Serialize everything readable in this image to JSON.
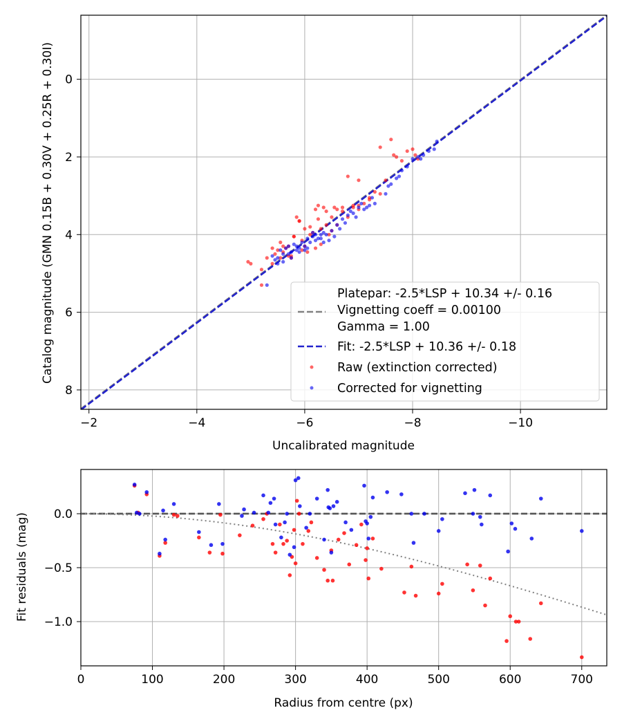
{
  "chart_data": [
    {
      "type": "scatter",
      "xlabel": "Uncalibrated magnitude",
      "ylabel": "Catalog magnitude (GMN 0.15B + 0.30V + 0.25R + 0.30I)",
      "xlim": [
        -1.85,
        -11.6
      ],
      "ylim": [
        8.5,
        -1.65
      ],
      "x_inverted": true,
      "y_inverted": true,
      "xticks": [
        -2,
        -4,
        -6,
        -8,
        -10
      ],
      "xtick_labels": [
        "−2",
        "−4",
        "−6",
        "−8",
        "−10"
      ],
      "yticks": [
        0,
        2,
        4,
        6,
        8
      ],
      "ytick_labels": [
        "0",
        "2",
        "4",
        "6",
        "8"
      ],
      "grid": true,
      "legend_position": "lower-right",
      "legend": {
        "platepar": "Platepar: -2.5*LSP + 10.34 +/- 0.16",
        "vignetting": "Vignetting coeff = 0.00100",
        "gamma": "Gamma = 1.00",
        "fit": "Fit: -2.5*LSP + 10.36 +/- 0.18",
        "raw": "Raw (extinction corrected)",
        "corrected": "Corrected for vignetting"
      },
      "lines": [
        {
          "name": "Platepar: -2.5*LSP + 10.34 +/- 0.16",
          "color": "#808080",
          "style": "dashed",
          "x": [
            -1.85,
            -11.6
          ],
          "y": [
            8.49,
            -1.65
          ]
        },
        {
          "name": "Fit: -2.5*LSP + 10.36 +/- 0.18",
          "color": "#2222cc",
          "style": "dashed",
          "x": [
            -1.85,
            -11.6
          ],
          "y": [
            8.51,
            -1.63
          ]
        }
      ],
      "series": [
        {
          "name": "Raw (extinction corrected)",
          "color": "#ff0000",
          "x": [
            -5.0,
            -4.95,
            -5.2,
            -5.3,
            -5.4,
            -5.45,
            -5.5,
            -5.55,
            -5.6,
            -5.65,
            -5.7,
            -5.75,
            -5.8,
            -5.85,
            -5.9,
            -5.95,
            -6.0,
            -6.05,
            -6.1,
            -6.15,
            -6.2,
            -6.25,
            -6.3,
            -6.35,
            -6.4,
            -6.45,
            -6.5,
            -6.55,
            -6.6,
            -6.7,
            -6.8,
            -6.9,
            -7.0,
            -7.1,
            -7.2,
            -7.3,
            -7.4,
            -7.6,
            -7.7,
            -7.8,
            -8.0,
            -8.1,
            -5.55,
            -5.7,
            -5.9,
            -6.0,
            -6.2,
            -6.3,
            -6.5,
            -6.7,
            -6.9,
            -7.0,
            -7.2,
            -7.5,
            -5.2,
            -5.4,
            -5.6,
            -5.8,
            -6.1,
            -6.4,
            -6.6,
            -6.8,
            -7.0,
            -7.4,
            -7.65,
            -7.9,
            -8.05,
            -5.75,
            -5.95,
            -6.25
          ],
          "y": [
            4.75,
            4.7,
            5.3,
            4.6,
            4.35,
            4.5,
            4.4,
            4.6,
            4.45,
            4.35,
            4.3,
            4.55,
            4.05,
            3.55,
            3.65,
            4.4,
            4.3,
            4.45,
            4.0,
            3.95,
            3.35,
            3.25,
            3.85,
            3.3,
            3.75,
            4.0,
            3.55,
            3.3,
            3.35,
            3.4,
            3.55,
            3.3,
            3.25,
            3.2,
            3.05,
            2.9,
            2.95,
            1.55,
            2.0,
            2.1,
            1.8,
            2.05,
            4.2,
            4.55,
            3.65,
            3.85,
            4.35,
            4.25,
            3.9,
            3.3,
            3.25,
            3.35,
            3.1,
            2.6,
            4.9,
            4.75,
            4.3,
            4.05,
            3.8,
            3.4,
            3.75,
            2.5,
            2.6,
            1.75,
            1.95,
            1.85,
            1.95,
            4.6,
            4.15,
            3.6
          ]
        },
        {
          "name": "Corrected for vignetting",
          "color": "#0000ee",
          "x": [
            -5.45,
            -5.5,
            -5.55,
            -5.6,
            -5.65,
            -5.7,
            -5.75,
            -5.8,
            -5.85,
            -5.9,
            -5.95,
            -6.0,
            -6.05,
            -6.1,
            -6.15,
            -6.2,
            -6.25,
            -6.3,
            -6.35,
            -6.4,
            -6.5,
            -6.6,
            -6.7,
            -6.8,
            -6.9,
            -7.0,
            -7.1,
            -7.2,
            -7.3,
            -7.5,
            -7.6,
            -7.7,
            -7.8,
            -7.9,
            -8.0,
            -8.1,
            -8.2,
            -8.3,
            -8.4,
            -8.45,
            -5.6,
            -5.75,
            -5.9,
            -6.05,
            -6.2,
            -6.35,
            -6.55,
            -6.75,
            -6.95,
            -7.15,
            -5.4,
            -5.5,
            -5.7,
            -5.85,
            -6.0,
            -6.15,
            -6.3,
            -6.45,
            -6.65,
            -6.85,
            -7.05,
            -7.25,
            -7.55,
            -7.75,
            -8.15,
            -5.3
          ],
          "y": [
            4.65,
            4.6,
            4.4,
            4.5,
            4.35,
            4.3,
            4.45,
            4.25,
            4.4,
            4.35,
            4.2,
            4.3,
            4.1,
            4.2,
            4.05,
            4.15,
            4.1,
            4.0,
            3.95,
            4.0,
            3.9,
            3.75,
            3.6,
            3.5,
            3.45,
            3.3,
            3.35,
            3.25,
            3.2,
            2.95,
            2.7,
            2.55,
            2.35,
            2.25,
            2.05,
            2.0,
            1.95,
            1.85,
            1.8,
            1.6,
            4.7,
            4.6,
            4.45,
            4.35,
            4.0,
            4.2,
            4.05,
            3.7,
            3.55,
            3.3,
            4.55,
            4.75,
            4.5,
            4.3,
            4.4,
            3.95,
            4.1,
            4.15,
            3.85,
            3.4,
            3.2,
            3.05,
            2.75,
            2.5,
            2.05,
            5.3
          ]
        }
      ]
    },
    {
      "type": "scatter",
      "xlabel": "Radius from centre (px)",
      "ylabel": "Fit residuals (mag)",
      "xlim": [
        0,
        735
      ],
      "ylim": [
        -1.41,
        0.41
      ],
      "xticks": [
        0,
        100,
        200,
        300,
        400,
        500,
        600,
        700
      ],
      "xtick_labels": [
        "0",
        "100",
        "200",
        "300",
        "400",
        "500",
        "600",
        "700"
      ],
      "yticks": [
        0.0,
        -0.5,
        -1.0
      ],
      "ytick_labels": [
        "0.0",
        "−0.5",
        "−1.0"
      ],
      "grid": true,
      "lines": [
        {
          "name": "zero",
          "color": "#555555",
          "style": "dashed",
          "x": [
            0,
            735
          ],
          "y": [
            0,
            0
          ]
        },
        {
          "name": "vignetting model",
          "color": "#808080",
          "style": "dotted",
          "func": "vignetting",
          "coeff": 0.001
        }
      ],
      "series": [
        {
          "name": "Raw (extinction corrected)",
          "color": "#ff0000",
          "x": [
            75,
            80,
            92,
            110,
            118,
            130,
            135,
            165,
            180,
            195,
            198,
            222,
            240,
            255,
            260,
            268,
            272,
            278,
            283,
            288,
            292,
            295,
            298,
            300,
            302,
            305,
            310,
            318,
            322,
            330,
            340,
            345,
            350,
            352,
            360,
            368,
            375,
            385,
            392,
            398,
            400,
            402,
            408,
            420,
            452,
            462,
            468,
            500,
            505,
            540,
            548,
            558,
            565,
            572,
            595,
            600,
            608,
            612,
            628,
            643,
            700
          ],
          "y": [
            0.26,
            0.01,
            0.18,
            -0.39,
            -0.27,
            -0.01,
            -0.02,
            -0.22,
            -0.36,
            -0.01,
            -0.37,
            -0.2,
            -0.11,
            -0.05,
            -0.0,
            -0.28,
            -0.36,
            -0.1,
            -0.28,
            -0.25,
            -0.57,
            -0.4,
            -0.15,
            -0.46,
            0.12,
            0.0,
            -0.28,
            -0.16,
            -0.08,
            -0.41,
            -0.52,
            -0.62,
            -0.34,
            -0.62,
            -0.24,
            -0.18,
            -0.47,
            -0.29,
            -0.1,
            -0.43,
            -0.32,
            -0.6,
            -0.23,
            -0.51,
            -0.73,
            -0.49,
            -0.76,
            -0.74,
            -0.65,
            -0.47,
            -0.71,
            -0.48,
            -0.85,
            -0.6,
            -1.18,
            -0.95,
            -1.0,
            -1.0,
            -1.16,
            -0.83,
            -1.33
          ]
        },
        {
          "name": "Corrected for vignetting",
          "color": "#0000ee",
          "x": [
            75,
            78,
            82,
            92,
            110,
            115,
            118,
            130,
            165,
            182,
            193,
            198,
            225,
            228,
            242,
            255,
            262,
            265,
            270,
            272,
            280,
            285,
            288,
            292,
            298,
            300,
            304,
            306,
            315,
            320,
            330,
            340,
            345,
            346,
            348,
            350,
            353,
            358,
            370,
            378,
            396,
            398,
            400,
            402,
            405,
            408,
            428,
            448,
            462,
            465,
            480,
            500,
            505,
            537,
            548,
            550,
            558,
            560,
            572,
            597,
            602,
            607,
            630,
            643,
            700
          ],
          "y": [
            0.27,
            0.01,
            0.0,
            0.2,
            -0.37,
            0.03,
            -0.24,
            0.09,
            -0.17,
            -0.29,
            0.09,
            -0.28,
            -0.02,
            0.04,
            0.01,
            0.17,
            0.01,
            0.1,
            0.14,
            -0.1,
            -0.22,
            -0.08,
            0.0,
            -0.38,
            -0.31,
            0.31,
            0.33,
            0.07,
            -0.13,
            0.0,
            0.14,
            -0.24,
            0.22,
            0.06,
            0.05,
            -0.36,
            0.07,
            0.11,
            -0.08,
            -0.15,
            0.26,
            -0.07,
            -0.09,
            -0.23,
            -0.03,
            0.15,
            0.2,
            0.18,
            0.0,
            -0.27,
            0.0,
            -0.16,
            -0.05,
            0.19,
            0.0,
            0.22,
            -0.03,
            -0.1,
            0.17,
            -0.35,
            -0.09,
            -0.14,
            -0.23,
            0.14,
            -0.16
          ]
        }
      ]
    }
  ]
}
